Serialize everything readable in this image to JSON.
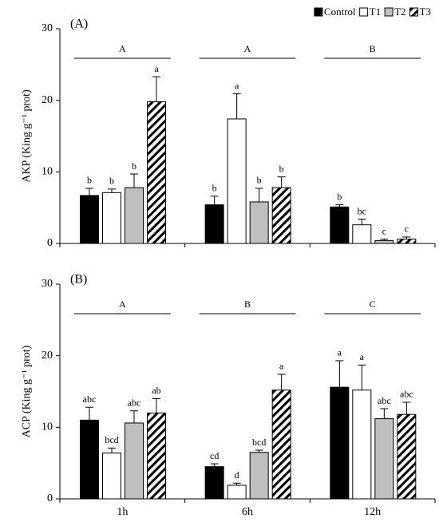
{
  "chart_data": [
    {
      "type": "bar",
      "panel_label": "(A)",
      "y_label": "AKP (King g⁻¹ prot)",
      "categories": [
        null,
        null,
        null
      ],
      "group_letters": [
        "A",
        "A",
        "B"
      ],
      "ylim": [
        0,
        30
      ],
      "yticks": [
        0,
        10,
        20,
        30
      ],
      "legend": "upper right",
      "series": [
        {
          "name": "Control",
          "color": "#000000",
          "values": [
            6.7,
            5.4,
            5.1
          ],
          "errors": [
            1.0,
            1.2,
            0.3
          ],
          "letters": [
            "b",
            "b",
            "b"
          ]
        },
        {
          "name": "T1",
          "color": "#ffffff",
          "values": [
            7.1,
            17.4,
            2.6
          ],
          "errors": [
            0.5,
            3.5,
            0.8
          ],
          "letters": [
            "b",
            "a",
            "bc"
          ]
        },
        {
          "name": "T2",
          "color": "#bfbfbf",
          "values": [
            7.8,
            5.8,
            0.4
          ],
          "errors": [
            1.9,
            1.9,
            0.2
          ],
          "letters": [
            "b",
            "b",
            "c"
          ]
        },
        {
          "name": "T3",
          "color": "#000000",
          "hatch": true,
          "values": [
            19.8,
            7.8,
            0.6
          ],
          "errors": [
            3.5,
            1.5,
            0.3
          ],
          "letters": [
            "a",
            "b",
            "c"
          ]
        }
      ]
    },
    {
      "type": "bar",
      "panel_label": "(B)",
      "y_label": "ACP (King g⁻¹ prot)",
      "categories": [
        "1h",
        "6h",
        "12h"
      ],
      "group_letters": [
        "A",
        "B",
        "C"
      ],
      "ylim": [
        0,
        30
      ],
      "yticks": [
        0,
        10,
        20,
        30
      ],
      "series": [
        {
          "color": "#000000",
          "values": [
            11.0,
            4.5,
            15.6
          ],
          "errors": [
            1.8,
            0.4,
            3.7
          ],
          "letters": [
            "abc",
            "cd",
            "a"
          ]
        },
        {
          "color": "#ffffff",
          "values": [
            6.4,
            1.9,
            15.2
          ],
          "errors": [
            0.7,
            0.3,
            3.5
          ],
          "letters": [
            "bcd",
            "d",
            "a"
          ]
        },
        {
          "color": "#bfbfbf",
          "values": [
            10.6,
            6.5,
            11.2
          ],
          "errors": [
            1.7,
            0.3,
            1.4
          ],
          "letters": [
            "abc",
            "bcd",
            "abc"
          ]
        },
        {
          "color": "#000000",
          "hatch": true,
          "values": [
            12.0,
            15.2,
            11.8
          ],
          "errors": [
            2.0,
            2.2,
            1.7
          ],
          "letters": [
            "ab",
            "a",
            "abc"
          ]
        }
      ]
    }
  ]
}
